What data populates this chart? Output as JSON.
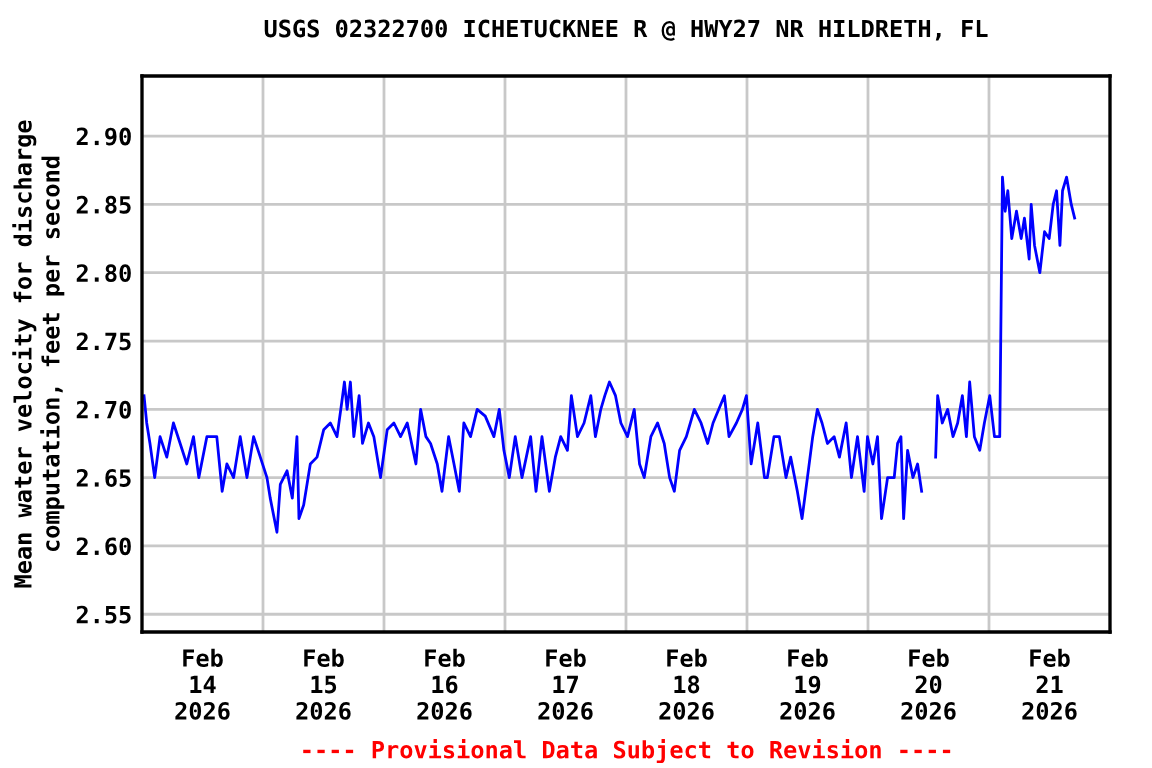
{
  "chart_data": {
    "type": "line",
    "title": "USGS 02322700 ICHETUCKNEE R @ HWY27 NR HILDRETH, FL",
    "ylabel": "Mean water velocity for discharge\ncomputation, feet per second",
    "annotations": [
      "---- Provisional Data Subject to Revision ----"
    ],
    "xlim": [
      "2026-02-14T00:00",
      "2026-02-22T00:00"
    ],
    "xticks": [
      {
        "value": "2026-02-14T12:00",
        "label": "Feb\n14\n2026"
      },
      {
        "value": "2026-02-15T12:00",
        "label": "Feb\n15\n2026"
      },
      {
        "value": "2026-02-16T12:00",
        "label": "Feb\n16\n2026"
      },
      {
        "value": "2026-02-17T12:00",
        "label": "Feb\n17\n2026"
      },
      {
        "value": "2026-02-18T12:00",
        "label": "Feb\n18\n2026"
      },
      {
        "value": "2026-02-19T12:00",
        "label": "Feb\n19\n2026"
      },
      {
        "value": "2026-02-20T12:00",
        "label": "Feb\n20\n2026"
      },
      {
        "value": "2026-02-21T12:00",
        "label": "Feb\n21\n2026"
      },
      {
        "value": "2026-02-15T00:00",
        "label": null
      },
      {
        "value": "2026-02-16T00:00",
        "label": null
      },
      {
        "value": "2026-02-17T00:00",
        "label": null
      },
      {
        "value": "2026-02-18T00:00",
        "label": null
      },
      {
        "value": "2026-02-19T00:00",
        "label": null
      },
      {
        "value": "2026-02-20T00:00",
        "label": null
      },
      {
        "value": "2026-02-21T00:00",
        "label": null
      }
    ],
    "ylim": [
      2.537,
      2.944
    ],
    "yticks": [
      2.55,
      {
        "value": 2.6,
        "label": "2.60"
      },
      2.65,
      {
        "value": 2.7,
        "label": "2.70"
      },
      2.75,
      {
        "value": 2.8,
        "label": "2.80"
      },
      2.85,
      {
        "value": 2.9,
        "label": "2.90"
      }
    ],
    "grid": true,
    "legend": false,
    "series": [
      {
        "color": "#0000ff",
        "x": [
          "2026-02-14T00:24",
          "2026-02-14T00:56",
          "2026-02-14T01:35",
          "2026-02-14T02:31",
          "2026-02-14T03:35",
          "2026-02-14T04:55",
          "2026-02-14T06:14",
          "2026-02-14T07:34",
          "2026-02-14T08:53",
          "2026-02-14T10:13",
          "2026-02-14T11:16",
          "2026-02-14T12:52",
          "2026-02-14T14:50",
          "2026-02-14T15:54",
          "2026-02-14T16:50",
          "2026-02-14T18:10",
          "2026-02-14T19:29",
          "2026-02-14T20:49",
          "2026-02-14T22:08",
          "2026-02-14T23:28",
          "2026-02-15T00:47",
          "2026-02-15T01:26",
          "2026-02-15T02:46",
          "2026-02-15T03:26",
          "2026-02-15T04:46",
          "2026-02-15T05:49",
          "2026-02-15T06:44",
          "2026-02-15T07:08",
          "2026-02-15T08:04",
          "2026-02-15T09:23",
          "2026-02-15T10:43",
          "2026-02-15T12:02",
          "2026-02-15T13:22",
          "2026-02-15T14:41",
          "2026-02-15T15:37",
          "2026-02-15T16:09",
          "2026-02-15T16:41",
          "2026-02-15T17:20",
          "2026-02-15T18:01",
          "2026-02-15T19:04",
          "2026-02-15T19:44",
          "2026-02-15T20:55",
          "2026-02-15T21:59",
          "2026-02-15T23:19",
          "2026-02-16T00:38",
          "2026-02-16T01:58",
          "2026-02-16T03:17",
          "2026-02-16T04:37",
          "2026-02-16T06:20",
          "2026-02-16T07:16",
          "2026-02-16T08:19",
          "2026-02-16T09:14",
          "2026-02-16T10:34",
          "2026-02-16T11:30",
          "2026-02-16T12:49",
          "2026-02-16T13:53",
          "2026-02-16T14:56",
          "2026-02-16T15:50",
          "2026-02-16T17:10",
          "2026-02-16T18:29",
          "2026-02-16T20:05",
          "2026-02-16T21:48",
          "2026-02-16T22:52",
          "2026-02-16T23:47",
          "2026-02-17T00:51",
          "2026-02-17T02:02",
          "2026-02-17T03:22",
          "2026-02-17T05:05",
          "2026-02-17T06:09",
          "2026-02-17T07:20",
          "2026-02-17T08:48",
          "2026-02-17T09:59",
          "2026-02-17T11:03",
          "2026-02-17T12:23",
          "2026-02-17T13:10",
          "2026-02-17T14:22",
          "2026-02-17T15:41",
          "2026-02-17T17:01",
          "2026-02-17T17:56",
          "2026-02-17T19:00",
          "2026-02-17T19:48",
          "2026-02-17T20:43",
          "2026-02-17T21:55",
          "2026-02-17T22:59",
          "2026-02-18T00:18",
          "2026-02-18T01:38",
          "2026-02-18T02:41",
          "2026-02-18T03:37",
          "2026-02-18T04:56",
          "2026-02-18T06:16",
          "2026-02-18T07:35",
          "2026-02-18T08:39",
          "2026-02-18T09:35",
          "2026-02-18T10:38",
          "2026-02-18T11:58",
          "2026-02-18T13:33",
          "2026-02-18T14:53",
          "2026-02-18T16:12",
          "2026-02-18T17:16",
          "2026-02-18T19:31",
          "2026-02-18T20:26",
          "2026-02-18T21:54",
          "2026-02-18T23:05",
          "2026-02-18T23:53",
          "2026-02-19T00:49",
          "2026-02-19T02:08",
          "2026-02-19T03:28",
          "2026-02-19T04:02",
          "2026-02-19T05:21",
          "2026-02-19T06:25",
          "2026-02-19T07:44",
          "2026-02-19T08:40",
          "2026-02-19T09:59",
          "2026-02-19T10:55",
          "2026-02-19T11:59",
          "2026-02-19T13:02",
          "2026-02-19T13:58",
          "2026-02-19T14:53",
          "2026-02-19T15:57",
          "2026-02-19T17:17",
          "2026-02-19T18:20",
          "2026-02-19T19:40",
          "2026-02-19T20:43",
          "2026-02-19T21:55",
          "2026-02-19T23:14",
          "2026-02-19T23:54",
          "2026-02-20T00:58",
          "2026-02-20T01:53",
          "2026-02-20T02:41",
          "2026-02-20T03:53",
          "2026-02-20T05:12",
          "2026-02-20T05:52",
          "2026-02-20T06:32",
          "2026-02-20T07:04",
          "2026-02-20T07:51",
          "2026-02-20T08:55",
          "2026-02-20T09:50",
          "2026-02-20T10:38",
          "2026-02-20T12:00",
          "2026-02-20T13:25",
          "2026-02-20T13:49",
          "2026-02-20T14:44",
          "2026-02-20T15:48",
          "2026-02-20T16:52",
          "2026-02-20T17:47",
          "2026-02-20T18:43",
          "2026-02-20T19:31",
          "2026-02-20T20:10",
          "2026-02-20T21:06",
          "2026-02-20T22:10",
          "2026-02-20T23:05",
          "2026-02-21T00:09",
          "2026-02-21T01:05",
          "2026-02-21T02:08",
          "2026-02-21T02:24",
          "2026-02-21T02:40",
          "2026-02-21T03:12",
          "2026-02-21T03:44",
          "2026-02-21T04:31",
          "2026-02-21T05:27",
          "2026-02-21T06:23",
          "2026-02-21T07:02",
          "2026-02-21T07:58",
          "2026-02-21T08:22",
          "2026-02-21T09:02",
          "2026-02-21T10:05",
          "2026-02-21T11:01",
          "2026-02-21T11:56",
          "2026-02-21T12:44",
          "2026-02-21T13:24",
          "2026-02-21T14:04",
          "2026-02-21T14:35",
          "2026-02-21T15:23",
          "2026-02-21T16:19",
          "2026-02-21T16:59"
        ],
        "values": [
          2.71,
          2.69,
          2.675,
          2.65,
          2.68,
          2.665,
          2.69,
          2.675,
          2.66,
          2.68,
          2.65,
          2.68,
          2.68,
          2.64,
          2.66,
          2.65,
          2.68,
          2.65,
          2.68,
          2.665,
          2.65,
          2.635,
          2.61,
          2.645,
          2.655,
          2.635,
          2.68,
          2.62,
          2.63,
          2.66,
          2.665,
          2.685,
          2.69,
          2.68,
          2.705,
          2.72,
          2.7,
          2.72,
          2.68,
          2.71,
          2.675,
          2.69,
          2.68,
          2.65,
          2.685,
          2.69,
          2.68,
          2.69,
          2.66,
          2.7,
          2.68,
          2.675,
          2.66,
          2.64,
          2.68,
          2.66,
          2.64,
          2.69,
          2.68,
          2.7,
          2.695,
          2.68,
          2.7,
          2.67,
          2.65,
          2.68,
          2.65,
          2.68,
          2.64,
          2.68,
          2.64,
          2.665,
          2.68,
          2.67,
          2.71,
          2.68,
          2.69,
          2.71,
          2.68,
          2.7,
          2.71,
          2.72,
          2.71,
          2.69,
          2.68,
          2.7,
          2.66,
          2.65,
          2.68,
          2.69,
          2.675,
          2.65,
          2.64,
          2.67,
          2.68,
          2.7,
          2.69,
          2.675,
          2.69,
          2.71,
          2.68,
          2.69,
          2.7,
          2.71,
          2.66,
          2.69,
          2.65,
          2.65,
          2.68,
          2.68,
          2.65,
          2.665,
          2.64,
          2.62,
          2.65,
          2.68,
          2.7,
          2.69,
          2.675,
          2.68,
          2.665,
          2.69,
          2.65,
          2.68,
          2.64,
          2.68,
          2.66,
          2.68,
          2.62,
          2.65,
          2.65,
          2.675,
          2.68,
          2.62,
          2.67,
          2.65,
          2.66,
          2.64,
          null,
          2.665,
          2.71,
          2.69,
          2.7,
          2.68,
          2.69,
          2.71,
          2.68,
          2.72,
          2.68,
          2.67,
          2.69,
          2.71,
          2.68,
          2.68,
          2.777,
          2.87,
          2.845,
          2.86,
          2.825,
          2.845,
          2.825,
          2.84,
          2.81,
          2.85,
          2.82,
          2.8,
          2.83,
          2.825,
          2.85,
          2.86,
          2.82,
          2.86,
          2.87,
          2.85,
          2.84
        ]
      }
    ]
  }
}
